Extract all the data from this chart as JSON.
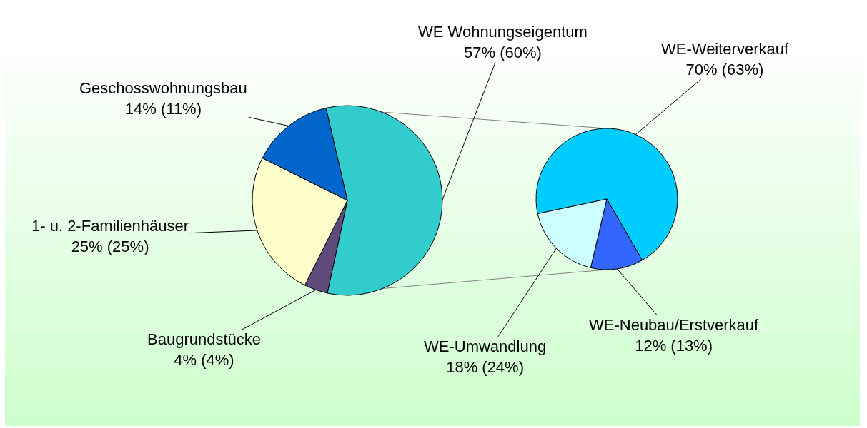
{
  "chart_data": [
    {
      "type": "pie",
      "categories": [
        "WE Wohnungseigentum",
        "Baugrundstücke",
        "1- u. 2-Familienhäuser",
        "Geschosswohnungsbau"
      ],
      "values": [
        57,
        4,
        25,
        14
      ],
      "colors": [
        "#33cccc",
        "#604a7b",
        "#ffffcc",
        "#0066cc"
      ],
      "value_labels": [
        "57% (60%)",
        "4% (4%)",
        "25% (25%)",
        "14% (11%)"
      ]
    },
    {
      "type": "pie",
      "categories": [
        "WE-Weiterverkauf",
        "WE-Neubau/Erstverkauf",
        "WE-Umwandlung"
      ],
      "values": [
        70,
        12,
        18
      ],
      "colors": [
        "#00ccff",
        "#3366ff",
        "#ccffff"
      ],
      "value_labels": [
        "70% (63%)",
        "12% (13%)",
        "18% (24%)"
      ]
    }
  ]
}
